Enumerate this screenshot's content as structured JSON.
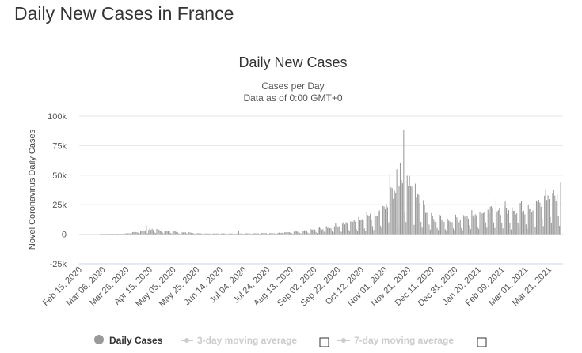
{
  "page": {
    "heading": "Daily New Cases in France"
  },
  "chart_data": {
    "type": "bar",
    "title": "Daily New Cases",
    "subtitle_lines": [
      "Cases per Day",
      "Data as of 0:00 GMT+0"
    ],
    "ylabel": "Novel Coronavirus Daily Cases",
    "xlabel": "",
    "ylim": [
      -25000,
      100000
    ],
    "y_ticks": [
      -25000,
      0,
      25000,
      50000,
      75000,
      100000
    ],
    "y_tick_labels": [
      "-25k",
      "0",
      "25k",
      "50k",
      "75k",
      "100k"
    ],
    "grid": true,
    "x_tick_labels": [
      "Feb 15, 2020",
      "Mar 06, 2020",
      "Mar 26, 2020",
      "Apr 15, 2020",
      "May 05, 2020",
      "May 25, 2020",
      "Jun 14, 2020",
      "Jul 04, 2020",
      "Jul 24, 2020",
      "Aug 13, 2020",
      "Sep 02, 2020",
      "Sep 22, 2020",
      "Oct 12, 2020",
      "Nov 01, 2020",
      "Nov 21, 2020",
      "Dec 11, 2020",
      "Dec 31, 2020",
      "Jan 20, 2021",
      "Feb 09, 2021",
      "Mar 01, 2021",
      "Mar 21, 2021"
    ],
    "weekly_average_key_points": [
      [
        0,
        0
      ],
      [
        20,
        200
      ],
      [
        35,
        2500
      ],
      [
        45,
        4000
      ],
      [
        55,
        3000
      ],
      [
        65,
        2000
      ],
      [
        80,
        1000
      ],
      [
        90,
        500
      ],
      [
        110,
        600
      ],
      [
        130,
        700
      ],
      [
        150,
        900
      ],
      [
        165,
        1500
      ],
      [
        180,
        3000
      ],
      [
        195,
        5000
      ],
      [
        210,
        8000
      ],
      [
        225,
        12000
      ],
      [
        240,
        17000
      ],
      [
        250,
        25000
      ],
      [
        258,
        35000
      ],
      [
        264,
        45000
      ],
      [
        270,
        38000
      ],
      [
        278,
        25000
      ],
      [
        288,
        13000
      ],
      [
        300,
        11000
      ],
      [
        310,
        12000
      ],
      [
        320,
        16000
      ],
      [
        335,
        19000
      ],
      [
        345,
        21000
      ],
      [
        355,
        20000
      ],
      [
        365,
        21000
      ],
      [
        375,
        22000
      ],
      [
        380,
        24000
      ],
      [
        385,
        29000
      ],
      [
        390,
        33000
      ],
      [
        395,
        32000
      ]
    ],
    "peak_days": [
      [
        263,
        88000
      ],
      [
        260,
        60000
      ],
      [
        257,
        55000
      ],
      [
        251,
        51000
      ]
    ],
    "series": [
      {
        "name": "Daily Cases"
      }
    ],
    "legend": {
      "items": [
        "Daily Cases",
        "3-day moving average",
        "7-day moving average"
      ],
      "position": "bottom"
    },
    "colors": {
      "bar": "#999999",
      "grid": "#e6e6e6",
      "zero_line": "#ccd6eb",
      "legend_active": "#333333",
      "legend_inactive": "#cccccc",
      "legend_marker": "#999999"
    }
  }
}
